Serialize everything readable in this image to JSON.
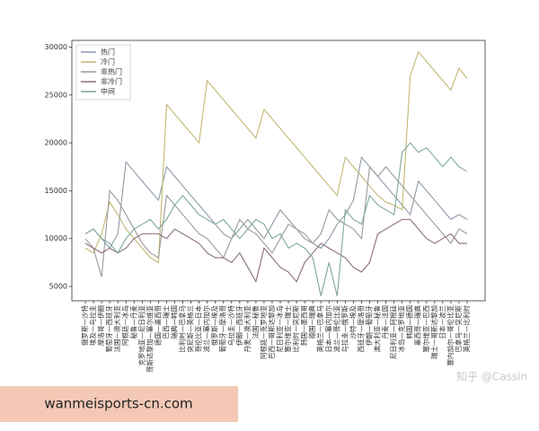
{
  "chart_data": {
    "type": "line",
    "categories": [
      "俄罗斯—沙特",
      "埃及—乌拉圭",
      "摩洛哥—伊朗",
      "葡萄牙—西班牙",
      "法国—澳大利亚",
      "阿根廷—冰岛",
      "秘鲁—丹麦",
      "克罗地亚—尼日利亚",
      "哥斯达黎加—塞尔维亚",
      "德国—墨西哥",
      "巴西—瑞士",
      "瑞典—韩国",
      "比利时—巴拿马",
      "突尼斯—英格兰",
      "哥伦比亚—日本",
      "波兰—塞内加尔",
      "俄罗斯—埃及",
      "葡萄牙—摩洛哥",
      "乌拉圭—沙特",
      "伊朗—西班牙",
      "丹麦—澳大利亚",
      "法国—秘鲁",
      "阿根廷—克罗地亚",
      "巴西—哥斯达黎加",
      "尼日利亚—冰岛",
      "塞尔维亚—瑞士",
      "比利时—突尼斯",
      "韩国—墨西哥",
      "德国—瑞典",
      "英格兰—巴拿马",
      "日本—塞内加尔",
      "波兰—哥伦比亚",
      "乌拉圭—俄罗斯",
      "沙特—埃及",
      "西班牙—摩洛哥",
      "伊朗—葡萄牙",
      "澳大利亚—秘鲁",
      "丹麦—法国",
      "尼日利亚—阿根廷",
      "冰岛—克罗地亚",
      "韩国—德国",
      "墨西哥—瑞典",
      "塞尔维亚—巴西",
      "瑞士—哥斯达黎加",
      "日本—波兰",
      "塞内加尔—哥伦比亚",
      "巴拿马—突尼斯",
      "英格兰—比利时"
    ],
    "series": [
      {
        "name": "热门",
        "color": "#8e9aa8",
        "values": [
          10500,
          11000,
          10000,
          9000,
          10500,
          18000,
          17000,
          16000,
          15000,
          14000,
          17500,
          16500,
          15500,
          14500,
          13500,
          12500,
          11500,
          10500,
          10000,
          11000,
          12000,
          11000,
          10000,
          11500,
          13000,
          12000,
          11000,
          10000,
          9500,
          9000,
          10000,
          11500,
          12500,
          14000,
          18500,
          17500,
          16500,
          15500,
          14500,
          13500,
          12500,
          16000,
          15000,
          14000,
          13000,
          12000,
          12500,
          12000
        ]
      },
      {
        "name": "冷门",
        "color": "#c2b772",
        "values": [
          9000,
          8500,
          10500,
          13800,
          12500,
          11000,
          10000,
          9000,
          8000,
          7500,
          24000,
          23000,
          22000,
          21000,
          20000,
          26500,
          25500,
          24500,
          23500,
          22500,
          21500,
          20500,
          23500,
          22500,
          21500,
          20500,
          19500,
          18500,
          17500,
          16500,
          15500,
          14500,
          18500,
          17500,
          16500,
          15500,
          14500,
          13800,
          13500,
          13000,
          27000,
          29500,
          28500,
          27500,
          26500,
          25500,
          27800,
          26700
        ]
      },
      {
        "name": "非热门",
        "color": "#9a9a9a",
        "values": [
          10000,
          9000,
          6000,
          15000,
          14000,
          12500,
          11000,
          9500,
          8500,
          8000,
          14500,
          13500,
          12500,
          11500,
          10500,
          10000,
          9000,
          8000,
          10000,
          12000,
          11000,
          10500,
          9500,
          8500,
          10000,
          11500,
          11000,
          10500,
          9500,
          10500,
          13000,
          12000,
          11500,
          11000,
          10000,
          17500,
          16500,
          17500,
          16500,
          15500,
          14500,
          13500,
          12500,
          11500,
          10500,
          9500,
          11000,
          10500
        ]
      },
      {
        "name": "非冷门",
        "color": "#8c6d7e",
        "values": [
          9500,
          9000,
          8500,
          9000,
          8500,
          9000,
          10000,
          10500,
          10500,
          10500,
          10000,
          11000,
          10500,
          10000,
          9500,
          8500,
          8000,
          8000,
          7500,
          8500,
          7000,
          5500,
          9000,
          8000,
          7000,
          6500,
          5500,
          7500,
          8500,
          9500,
          9000,
          8500,
          8000,
          7000,
          6500,
          7500,
          10500,
          11000,
          11500,
          12000,
          12000,
          11000,
          10000,
          9500,
          10000,
          10500,
          9500,
          9500
        ]
      },
      {
        "name": "中间",
        "color": "#7fa89a",
        "values": [
          10500,
          11000,
          10000,
          9500,
          8500,
          10000,
          11000,
          11500,
          12000,
          11000,
          12000,
          13500,
          14500,
          13500,
          12500,
          12000,
          11500,
          12000,
          11000,
          10000,
          11000,
          12000,
          11500,
          10000,
          10500,
          9000,
          9500,
          9000,
          8000,
          4000,
          7500,
          4000,
          13000,
          12000,
          11500,
          14500,
          13500,
          13000,
          12500,
          19000,
          20000,
          19000,
          19500,
          18500,
          17500,
          18500,
          17500,
          17000
        ]
      }
    ],
    "ylim": [
      3500,
      30700
    ],
    "yticks": [
      5000,
      10000,
      15000,
      20000,
      25000,
      30000
    ],
    "legend": "upper left"
  },
  "watermark": {
    "site": "wanmeisports-cn.com",
    "credit": "知乎 @Cassin"
  }
}
